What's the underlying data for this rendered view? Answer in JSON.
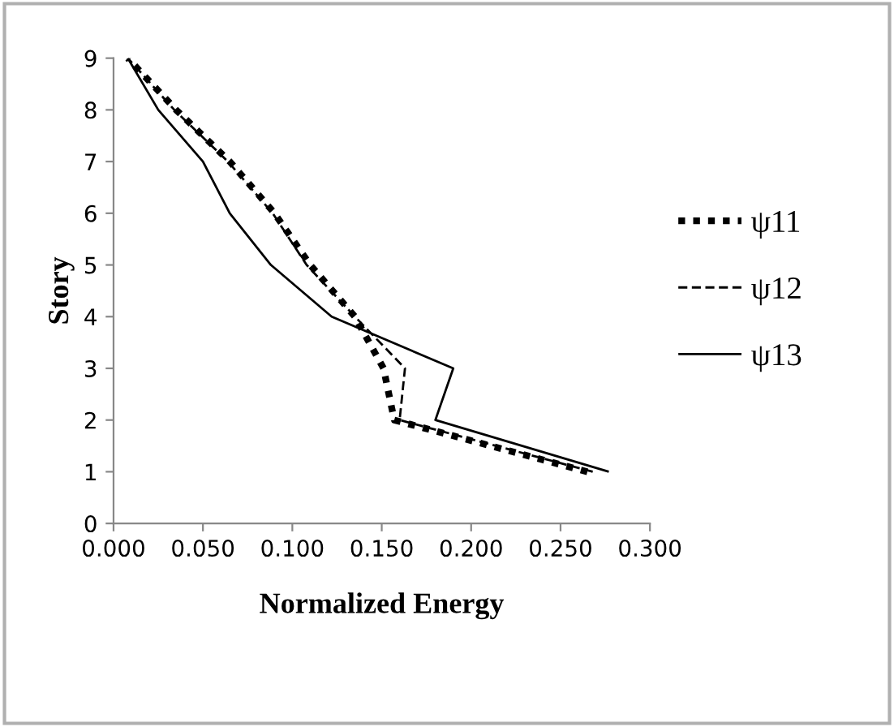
{
  "chart_data": {
    "type": "line",
    "xlabel": "Normalized Energy",
    "ylabel": "Story",
    "xlim": [
      0,
      0.3
    ],
    "xticks": [
      {
        "value": 0,
        "label": "0.000"
      },
      {
        "value": 0.05,
        "label": "0.050"
      },
      {
        "value": 0.1,
        "label": "0.100"
      },
      {
        "value": 0.15,
        "label": "0.150"
      },
      {
        "value": 0.2,
        "label": "0.200"
      },
      {
        "value": 0.25,
        "label": "0.250"
      },
      {
        "value": 0.3,
        "label": "0.300"
      }
    ],
    "ylim": [
      0,
      9
    ],
    "yticks": [
      0,
      1,
      2,
      3,
      4,
      5,
      6,
      7,
      8,
      9
    ],
    "grid": false,
    "legend": "right",
    "series": [
      {
        "name": "ψ11",
        "color": "#000000",
        "line_style": "dotted",
        "x": [
          0.265,
          0.157,
          0.151,
          0.135,
          0.11,
          0.09,
          0.065,
          0.035,
          0.008
        ],
        "values": [
          1,
          2,
          3,
          4,
          5,
          6,
          7,
          8,
          9
        ]
      },
      {
        "name": "ψ12",
        "color": "#000000",
        "line_style": "dashed",
        "x": [
          0.268,
          0.16,
          0.163,
          0.135,
          0.108,
          0.089,
          0.064,
          0.034,
          0.008
        ],
        "values": [
          1,
          2,
          3,
          4,
          5,
          6,
          7,
          8,
          9
        ]
      },
      {
        "name": "ψ13",
        "color": "#000000",
        "line_style": "solid",
        "x": [
          0.277,
          0.18,
          0.19,
          0.122,
          0.088,
          0.065,
          0.05,
          0.025,
          0.008
        ],
        "values": [
          1,
          2,
          3,
          4,
          5,
          6,
          7,
          8,
          9
        ]
      }
    ]
  }
}
